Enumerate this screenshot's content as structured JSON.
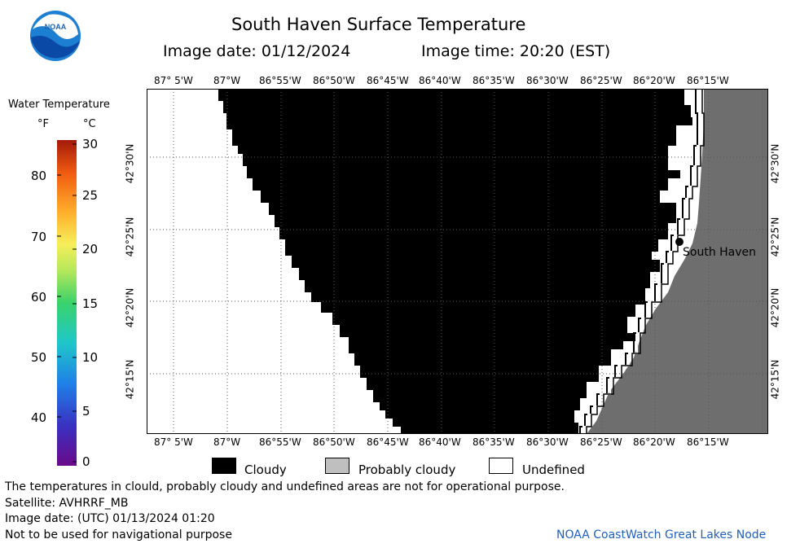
{
  "header": {
    "title": "South Haven Surface Temperature",
    "image_date": "Image date: 01/12/2024",
    "image_time": "Image time: 20:20 (EST)"
  },
  "logo": {
    "text": "NOAA",
    "icon": "noaa-logo-icon"
  },
  "colorbar": {
    "title": "Water Temperature",
    "unit_f": "°F",
    "unit_c": "°C",
    "f_ticks": [
      "80",
      "70",
      "60",
      "50",
      "40"
    ],
    "c_ticks": [
      "30",
      "25",
      "20",
      "15",
      "10",
      "5",
      "0"
    ]
  },
  "map": {
    "lon_labels": [
      "87° 5'W",
      "87°W",
      "86°55'W",
      "86°50'W",
      "86°45'W",
      "86°40'W",
      "86°35'W",
      "86°30'W",
      "86°25'W",
      "86°20'W",
      "86°15'W"
    ],
    "lat_labels": [
      "42°30'N",
      "42°25'N",
      "42°20'N",
      "42°15'N"
    ],
    "city_label": "South Haven",
    "colors": {
      "cloudy": "#000000",
      "land": "#6e6e6e",
      "probably_cloudy": "#bfbfbf",
      "undefined": "#ffffff"
    }
  },
  "legend": {
    "cloudy": "Cloudy",
    "probably_cloudy": "Probably cloudy",
    "undefined": "Undefined"
  },
  "footer": {
    "line1": "The temperatures in clould, probably cloudy and undefined areas are not for operational purpose.",
    "line2": "Satellite: AVHRRF_MB",
    "line3": "Image date: (UTC) 01/13/2024  01:20",
    "line4": "Not to be used for navigational purpose",
    "credit": "NOAA CoastWatch Great Lakes Node"
  }
}
